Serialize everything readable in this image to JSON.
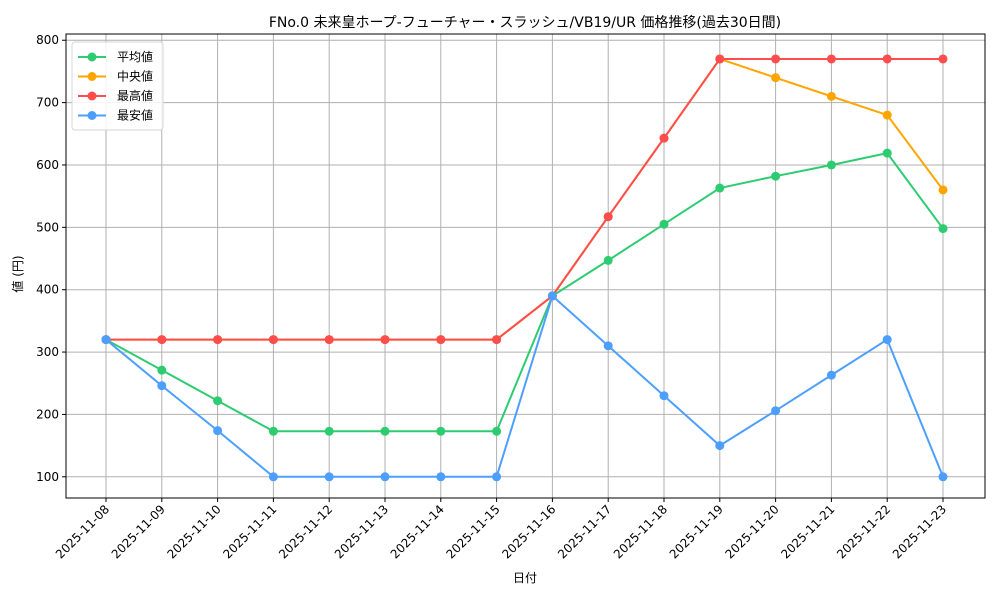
{
  "chart_data": {
    "type": "line",
    "title": "FNo.0 未来皇ホープ-フューチャー・スラッシュ/VB19/UR 価格推移(過去30日間)",
    "xlabel": "日付",
    "ylabel": "値 (円)",
    "ylim": [
      66,
      810
    ],
    "yticks": [
      100,
      200,
      300,
      400,
      500,
      600,
      700,
      800
    ],
    "grid": true,
    "legend_position": "upper left",
    "categories": [
      "2025-11-08",
      "2025-11-09",
      "2025-11-10",
      "2025-11-11",
      "2025-11-12",
      "2025-11-13",
      "2025-11-14",
      "2025-11-15",
      "2025-11-16",
      "2025-11-17",
      "2025-11-18",
      "2025-11-19",
      "2025-11-20",
      "2025-11-21",
      "2025-11-22",
      "2025-11-23"
    ],
    "series": [
      {
        "name": "平均値",
        "color": "#2ecc71",
        "values": [
          320,
          271,
          222,
          173,
          173,
          173,
          173,
          173,
          390,
          447,
          505,
          563,
          582,
          600,
          619,
          498
        ]
      },
      {
        "name": "中央値",
        "color": "#ffa500",
        "values": [
          320,
          320,
          320,
          320,
          320,
          320,
          320,
          320,
          390,
          517,
          643,
          770,
          740,
          710,
          680,
          560
        ]
      },
      {
        "name": "最高値",
        "color": "#ff4d4d",
        "values": [
          320,
          320,
          320,
          320,
          320,
          320,
          320,
          320,
          390,
          517,
          643,
          770,
          770,
          770,
          770,
          770
        ]
      },
      {
        "name": "最安値",
        "color": "#4d9fff",
        "values": [
          320,
          246,
          174,
          100,
          100,
          100,
          100,
          100,
          390,
          310,
          230,
          150,
          206,
          263,
          320,
          100
        ]
      }
    ]
  }
}
